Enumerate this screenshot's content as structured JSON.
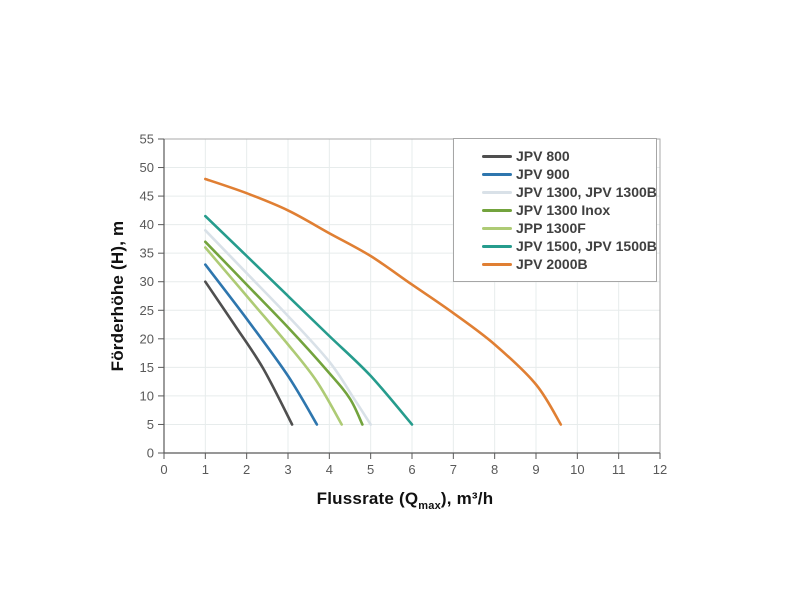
{
  "chart_data": {
    "type": "line",
    "title": "",
    "xlabel": "Flussrate (Qmax), m³/h",
    "xlabel_parts": {
      "pre": "Flussrate (Q",
      "sub": "max",
      "post": "), m³/h"
    },
    "ylabel": "Förderhöhe (H), m",
    "xlim": [
      0,
      12
    ],
    "ylim": [
      0,
      55
    ],
    "xticks": [
      0,
      1,
      2,
      3,
      4,
      5,
      6,
      7,
      8,
      9,
      10,
      11,
      12
    ],
    "yticks": [
      0,
      5,
      10,
      15,
      20,
      25,
      30,
      35,
      40,
      45,
      50,
      55
    ],
    "grid": true,
    "legend_position": "top-right-inside",
    "series": [
      {
        "name": "JPV 800",
        "color": "#4f4f4f",
        "points": [
          [
            1,
            30
          ],
          [
            1.7,
            22.5
          ],
          [
            2.4,
            14.8
          ],
          [
            3.1,
            5
          ]
        ]
      },
      {
        "name": "JPV 900",
        "color": "#2e76ae",
        "points": [
          [
            1,
            33
          ],
          [
            2,
            23.5
          ],
          [
            3,
            13.5
          ],
          [
            3.7,
            5
          ]
        ]
      },
      {
        "name": "JPV 1300, JPV 1300B",
        "color": "#d9e1e8",
        "points": [
          [
            1,
            39
          ],
          [
            2,
            31.5
          ],
          [
            3,
            24
          ],
          [
            4,
            16
          ],
          [
            4.6,
            9.5
          ],
          [
            5,
            5
          ]
        ]
      },
      {
        "name": "JPV 1300 Inox",
        "color": "#73a33d",
        "points": [
          [
            1,
            37
          ],
          [
            2,
            29.5
          ],
          [
            3,
            22
          ],
          [
            4,
            14
          ],
          [
            4.5,
            9.5
          ],
          [
            4.8,
            5
          ]
        ]
      },
      {
        "name": "JPP 1300F",
        "color": "#aecb75",
        "points": [
          [
            1,
            36
          ],
          [
            2,
            27.5
          ],
          [
            3,
            19
          ],
          [
            3.7,
            12.5
          ],
          [
            4.3,
            5
          ]
        ]
      },
      {
        "name": "JPV 1500, JPV 1500B",
        "color": "#269c8d",
        "points": [
          [
            1,
            41.5
          ],
          [
            2,
            34.5
          ],
          [
            3,
            27.5
          ],
          [
            4,
            20.5
          ],
          [
            5,
            13.5
          ],
          [
            6,
            5
          ]
        ]
      },
      {
        "name": "JPV 2000B",
        "color": "#e07f33",
        "points": [
          [
            1,
            48
          ],
          [
            2,
            45.5
          ],
          [
            3,
            42.5
          ],
          [
            4,
            38.5
          ],
          [
            5,
            34.5
          ],
          [
            6,
            29.5
          ],
          [
            7,
            24.5
          ],
          [
            8,
            19
          ],
          [
            9,
            12
          ],
          [
            9.6,
            5
          ]
        ]
      }
    ]
  },
  "style_colors": {
    "background": "#ffffff",
    "axis_line": "#595959",
    "frame": "#a9a9a9",
    "gridline": "#e7ecec",
    "tick_label": "#595959",
    "axis_title": "#111111",
    "legend_text": "#404040",
    "legend_border": "#a6a6a6"
  }
}
